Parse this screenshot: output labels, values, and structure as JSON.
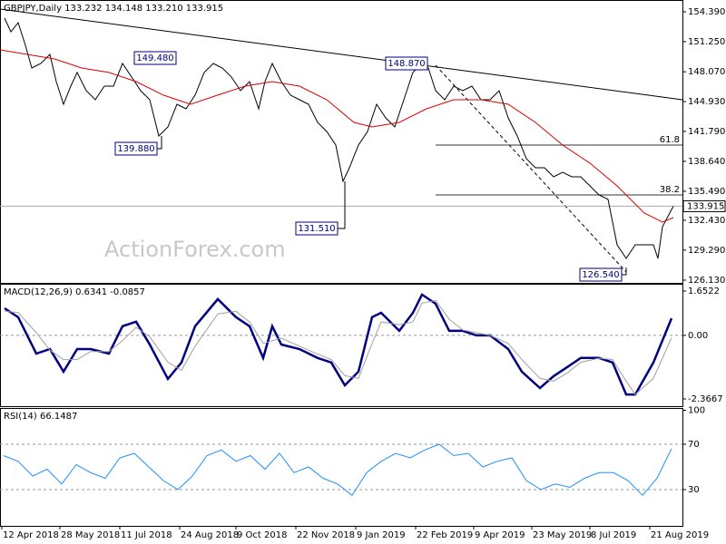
{
  "chart_data": [
    {
      "type": "line",
      "title": "GBPJPY,Daily  133.232 134.148 133.210 133.915",
      "watermark": "ActionForex.com",
      "xlim": [
        0,
        376
      ],
      "ylim": [
        125.84,
        155.63
      ],
      "yticks": [
        {
          "value": 154.39,
          "label": "154.390"
        },
        {
          "value": 151.25,
          "label": "151.250"
        },
        {
          "value": 148.07,
          "label": "148.070"
        },
        {
          "value": 144.93,
          "label": "144.930"
        },
        {
          "value": 141.79,
          "label": "141.790"
        },
        {
          "value": 138.64,
          "label": "138.640"
        },
        {
          "value": 135.49,
          "label": "135.490"
        },
        {
          "value": 132.43,
          "label": "132.430"
        },
        {
          "value": 129.29,
          "label": "129.290"
        },
        {
          "value": 126.13,
          "label": "126.130"
        }
      ],
      "last_price": {
        "value": 133.915,
        "label": "133.915"
      },
      "series": [
        {
          "color": "#000000",
          "x": [
            2.5,
            6,
            10,
            14,
            17.5,
            22.5,
            27.5,
            31,
            35,
            39,
            42.5,
            47.5,
            52.5,
            57.5,
            62.5,
            67.5,
            72.5,
            77.5,
            82.5,
            87.5,
            92.5,
            97.5,
            102.5,
            107.5,
            112.5,
            117.5,
            122.5,
            127.5,
            132.5,
            137.5,
            142.5,
            146,
            150,
            155,
            160,
            165,
            170,
            175,
            180,
            185,
            189,
            192.5,
            197.5,
            202.5,
            207.5,
            212.5,
            217.5,
            222.5,
            227.5,
            232.5,
            236,
            240,
            245,
            250,
            255,
            260,
            265,
            270,
            275,
            280,
            285,
            290,
            295,
            300,
            305,
            310,
            315,
            320,
            325,
            330,
            335,
            340,
            345,
            350,
            355,
            360,
            362.5,
            365,
            369,
            371
          ],
          "values": [
            153.72,
            152.29,
            153.24,
            150.86,
            148.47,
            148.95,
            149.9,
            147.04,
            144.65,
            146.56,
            148.0,
            146.08,
            145.13,
            146.56,
            146.56,
            148.95,
            147.52,
            146.08,
            145.13,
            141.31,
            142.26,
            144.65,
            144.17,
            145.61,
            148.0,
            148.95,
            148.47,
            147.52,
            146.08,
            147.04,
            144.17,
            147.04,
            148.95,
            147.04,
            145.61,
            145.13,
            144.65,
            142.74,
            141.79,
            140.35,
            136.54,
            137.97,
            140.35,
            141.79,
            144.65,
            143.22,
            142.26,
            145.13,
            148.0,
            148.95,
            148.47,
            146.08,
            145.13,
            146.56,
            146.08,
            146.56,
            145.13,
            145.13,
            146.08,
            143.22,
            141.31,
            138.92,
            137.97,
            137.97,
            137.01,
            137.49,
            137.01,
            137.01,
            136.06,
            135.1,
            134.63,
            129.85,
            128.42,
            129.85,
            129.85,
            129.85,
            128.42,
            131.76,
            133.19,
            133.915
          ]
        },
        {
          "color": "#dd0000",
          "x": [
            0,
            15,
            30,
            45,
            60,
            75,
            90,
            105,
            120,
            135,
            150,
            165,
            180,
            195,
            205,
            220,
            235,
            250,
            265,
            280,
            295,
            310,
            325,
            340,
            355,
            365,
            371
          ],
          "values": [
            150.38,
            149.9,
            149.42,
            148.47,
            148.0,
            147.04,
            145.61,
            144.65,
            145.61,
            146.56,
            147.04,
            146.56,
            145.13,
            142.74,
            142.26,
            142.74,
            144.17,
            145.13,
            145.13,
            144.65,
            142.74,
            140.35,
            138.45,
            136.06,
            133.19,
            132.24,
            132.71
          ]
        }
      ],
      "trendlines": [
        {
          "x": [
            0,
            376
          ],
          "values": [
            154.68,
            145.13
          ],
          "color": "#000000"
        },
        {
          "x": [
            240,
            345
          ],
          "values": [
            148.76,
            126.99
          ],
          "color": "#000000",
          "dashed": true
        }
      ],
      "levels": [
        {
          "label": "61.8",
          "value": 140.35,
          "x": [
            240,
            376
          ]
        },
        {
          "label": "38.2",
          "value": 135.1,
          "x": [
            240,
            376
          ]
        }
      ],
      "annotations": [
        "149.480",
        "148.870",
        "139.880",
        "131.510",
        "126.540"
      ]
    },
    {
      "type": "line",
      "title": "MACD(12,26,9) 0.6341 -0.0857",
      "xlim": [
        0,
        376
      ],
      "ylim": [
        -2.637,
        1.922
      ],
      "yticks": [
        1.6522,
        {
          "value": 0,
          "label": "0.00"
        },
        -2.3667
      ],
      "series": [
        {
          "color": "#000080",
          "x": [
            2.5,
            10,
            20,
            27.5,
            35,
            42.5,
            50,
            60,
            67.5,
            75,
            82.5,
            92.5,
            100,
            107.5,
            120,
            130,
            137.5,
            145,
            150,
            155,
            165,
            175,
            182.5,
            190,
            197.5,
            205,
            210,
            220,
            227.5,
            232.5,
            240,
            247.5,
            255,
            262.5,
            270,
            280,
            287.5,
            297.5,
            305,
            312.5,
            320,
            330,
            337.5,
            345,
            350,
            360,
            370
          ],
          "values": [
            1.01,
            0.68,
            -0.68,
            -0.51,
            -1.35,
            -0.51,
            -0.51,
            -0.68,
            0.34,
            0.51,
            -0.34,
            -1.62,
            -1.01,
            0.34,
            1.35,
            0.68,
            0.34,
            -0.84,
            0.34,
            -0.34,
            -0.51,
            -0.84,
            -1.01,
            -1.86,
            -1.35,
            0.68,
            0.84,
            0.17,
            0.84,
            1.52,
            1.18,
            0.17,
            0.17,
            0,
            0,
            -0.51,
            -1.35,
            -1.96,
            -1.52,
            -1.18,
            -0.84,
            -0.84,
            -1.01,
            -2.2,
            -2.2,
            -1.01,
            0.6341
          ]
        },
        {
          "color": "#a0a0a0",
          "x": [
            2.5,
            10,
            20,
            27.5,
            35,
            42.5,
            50,
            60,
            67.5,
            75,
            82.5,
            92.5,
            100,
            107.5,
            120,
            130,
            137.5,
            145,
            150,
            155,
            165,
            175,
            182.5,
            190,
            197.5,
            205,
            210,
            220,
            227.5,
            232.5,
            240,
            247.5,
            255,
            262.5,
            270,
            280,
            287.5,
            297.5,
            305,
            312.5,
            320,
            330,
            337.5,
            345,
            350,
            360,
            370
          ],
          "values": [
            0.9,
            0.85,
            0.1,
            -0.55,
            -0.9,
            -0.9,
            -0.6,
            -0.6,
            -0.2,
            0.3,
            -0.05,
            -1.0,
            -1.3,
            -0.4,
            0.8,
            0.9,
            0.5,
            -0.3,
            -0.2,
            -0.1,
            -0.4,
            -0.7,
            -0.9,
            -1.5,
            -1.6,
            -0.3,
            0.5,
            0.4,
            0.5,
            1.2,
            1.3,
            0.6,
            0.2,
            0.1,
            0.0,
            -0.3,
            -0.9,
            -1.6,
            -1.7,
            -1.4,
            -1.0,
            -0.85,
            -0.9,
            -1.7,
            -2.2,
            -1.6,
            -0.0857
          ]
        }
      ]
    },
    {
      "type": "line",
      "title": "RSI(14) 66.1487",
      "xlim": [
        0,
        376
      ],
      "ylim": [
        -2,
        102
      ],
      "yticks": [
        100,
        70,
        30
      ],
      "levels": [
        70,
        30
      ],
      "xticks": [
        {
          "value": 1,
          "label": "12 Apr 2018"
        },
        {
          "value": 33,
          "label": "28 May 2018"
        },
        {
          "value": 66,
          "label": "11 Jul 2018"
        },
        {
          "value": 99,
          "label": "24 Aug 2018"
        },
        {
          "value": 130,
          "label": "9 Oct 2018"
        },
        {
          "value": 163,
          "label": "22 Nov 2018"
        },
        {
          "value": 196,
          "label": "9 Jan 2019"
        },
        {
          "value": 229,
          "label": "22 Feb 2019"
        },
        {
          "value": 261,
          "label": "9 Apr 2019"
        },
        {
          "value": 293,
          "label": "23 May 2019"
        },
        {
          "value": 325,
          "label": "8 Jul 2019"
        },
        {
          "value": 358,
          "label": "21 Aug 2019"
        }
      ],
      "series": [
        {
          "color": "#1e90ff",
          "x": [
            2,
            10,
            18,
            26,
            34,
            42,
            50,
            58,
            66,
            74,
            82,
            90,
            98,
            106,
            114,
            122,
            130,
            138,
            146,
            154,
            162,
            170,
            178,
            186,
            194,
            202,
            210,
            218,
            226,
            234,
            242,
            250,
            258,
            266,
            274,
            282,
            290,
            298,
            306,
            314,
            322,
            330,
            338,
            346,
            354,
            362,
            370
          ],
          "values": [
            60,
            55,
            42,
            48,
            35,
            52,
            45,
            40,
            58,
            62,
            50,
            38,
            30,
            42,
            60,
            65,
            55,
            60,
            48,
            62,
            45,
            50,
            40,
            35,
            25,
            45,
            55,
            62,
            58,
            65,
            70,
            60,
            62,
            50,
            55,
            58,
            38,
            30,
            35,
            32,
            40,
            45,
            45,
            38,
            25,
            40,
            66.15
          ]
        }
      ]
    }
  ]
}
